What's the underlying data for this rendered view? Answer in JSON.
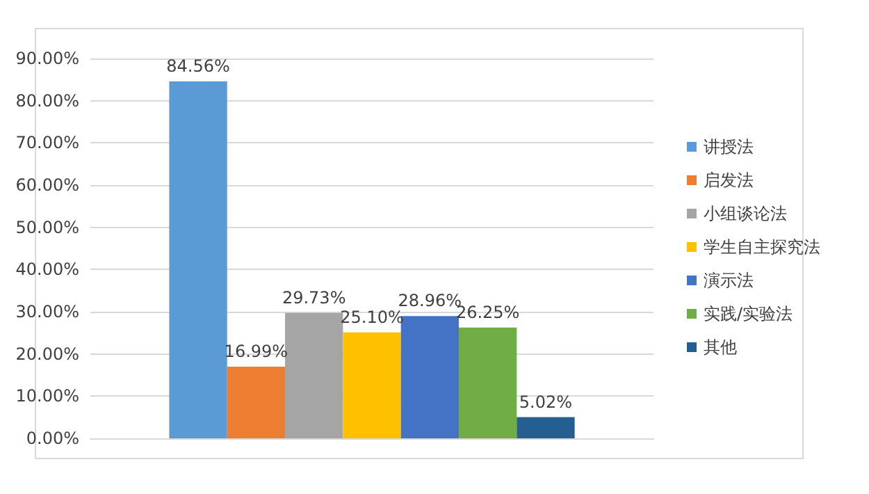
{
  "chart_data": {
    "type": "bar",
    "categories": [
      null
    ],
    "series": [
      {
        "name": "讲授法",
        "color": "#5b9bd5",
        "values": [
          84.56
        ],
        "value_labels": [
          "84.56%"
        ]
      },
      {
        "name": "启发法",
        "color": "#ed7d31",
        "values": [
          16.99
        ],
        "value_labels": [
          "16.99%"
        ]
      },
      {
        "name": "小组谈论法",
        "color": "#a5a5a5",
        "values": [
          29.73
        ],
        "value_labels": [
          "29.73%"
        ]
      },
      {
        "name": "学生自主探究法",
        "color": "#ffc000",
        "values": [
          25.1
        ],
        "value_labels": [
          "25.10%"
        ]
      },
      {
        "name": "演示法",
        "color": "#4472c4",
        "values": [
          28.96
        ],
        "value_labels": [
          "28.96%"
        ]
      },
      {
        "name": "实践/实验法",
        "color": "#70ad47",
        "values": [
          26.25
        ],
        "value_labels": [
          "26.25%"
        ]
      },
      {
        "name": "其他",
        "color": "#255e91",
        "values": [
          5.02
        ],
        "value_labels": [
          "5.02%"
        ]
      }
    ],
    "ylim": [
      0,
      90
    ],
    "yticks": [
      {
        "value": 0,
        "label": "0.00%"
      },
      {
        "value": 10,
        "label": "10.00%"
      },
      {
        "value": 20,
        "label": "20.00%"
      },
      {
        "value": 30,
        "label": "30.00%"
      },
      {
        "value": 40,
        "label": "40.00%"
      },
      {
        "value": 50,
        "label": "50.00%"
      },
      {
        "value": 60,
        "label": "60.00%"
      },
      {
        "value": 70,
        "label": "70.00%"
      },
      {
        "value": 80,
        "label": "80.00%"
      },
      {
        "value": 90,
        "label": "90.00%"
      }
    ],
    "grid": "y",
    "legend": "right"
  }
}
